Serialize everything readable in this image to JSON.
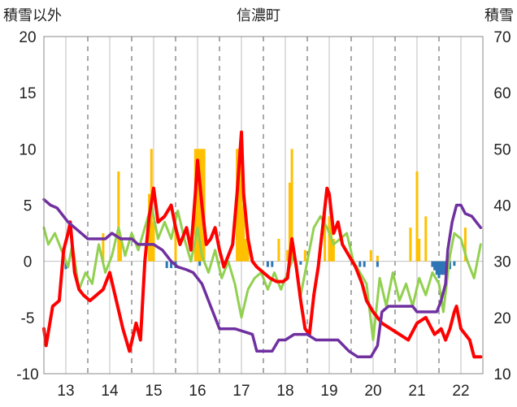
{
  "chart_data": {
    "type": "bar+line",
    "title": "信濃町",
    "left_axis_label": "積雪以外",
    "right_axis_label": "積雪",
    "left_ylim": [
      -10,
      20
    ],
    "left_yticks": [
      "20",
      "15",
      "10",
      "5",
      "0",
      "-5",
      "-10"
    ],
    "right_ylim": [
      10,
      70
    ],
    "right_yticks": [
      "70",
      "60",
      "50",
      "40",
      "30",
      "20",
      "10"
    ],
    "x_range": [
      12.5,
      22.5
    ],
    "x_ticks": [
      "13",
      "14",
      "15",
      "16",
      "17",
      "18",
      "19",
      "20",
      "21",
      "22"
    ],
    "grid": {
      "vertical_solid_at": [
        13,
        14,
        15,
        16,
        17,
        18,
        19,
        20,
        21,
        22
      ],
      "vertical_dashed_at": [
        13.5,
        14.5,
        15.5,
        16.5,
        17.5,
        18.5,
        19.5,
        20.5,
        21.5,
        22.5
      ]
    },
    "colors": {
      "orange_bars": "#FFC000",
      "blue_bars": "#2E75B6",
      "red_line": "#FF0000",
      "green_line": "#92D050",
      "purple_line": "#7030A0"
    },
    "orange_bars": [
      [
        13.85,
        2.5
      ],
      [
        14.2,
        8
      ],
      [
        14.25,
        2
      ],
      [
        14.9,
        6
      ],
      [
        14.95,
        10
      ],
      [
        15.0,
        3.5
      ],
      [
        15.5,
        3
      ],
      [
        15.95,
        10
      ],
      [
        16.0,
        10
      ],
      [
        16.05,
        10
      ],
      [
        16.1,
        10
      ],
      [
        16.15,
        10
      ],
      [
        16.9,
        10
      ],
      [
        16.95,
        10
      ],
      [
        17.0,
        10.5
      ],
      [
        17.05,
        5
      ],
      [
        17.1,
        2
      ],
      [
        17.15,
        1.5
      ],
      [
        17.85,
        2
      ],
      [
        18.05,
        1
      ],
      [
        18.1,
        7
      ],
      [
        18.15,
        10
      ],
      [
        18.45,
        1
      ],
      [
        18.9,
        5
      ],
      [
        19.0,
        4
      ],
      [
        19.05,
        4
      ],
      [
        19.1,
        2
      ],
      [
        19.95,
        1
      ],
      [
        20.1,
        0.5
      ],
      [
        20.85,
        3
      ],
      [
        21.0,
        8
      ],
      [
        21.05,
        2
      ],
      [
        21.2,
        4
      ],
      [
        22.1,
        3
      ]
    ],
    "blue_bars": [
      [
        13.0,
        -0.7
      ],
      [
        15.3,
        -0.6
      ],
      [
        15.4,
        -0.6
      ],
      [
        15.5,
        -0.6
      ],
      [
        16.05,
        -0.4
      ],
      [
        17.6,
        -0.5
      ],
      [
        17.7,
        -0.5
      ],
      [
        18.35,
        -0.3
      ],
      [
        19.7,
        -0.5
      ],
      [
        19.8,
        -0.5
      ],
      [
        20.1,
        -0.5
      ],
      [
        21.35,
        -0.5
      ],
      [
        21.4,
        -0.8
      ],
      [
        21.45,
        -1.2
      ],
      [
        21.5,
        -1.5
      ],
      [
        21.55,
        -1.2
      ],
      [
        21.6,
        -1.2
      ],
      [
        21.65,
        -1.2
      ],
      [
        21.7,
        -1.0
      ],
      [
        21.75,
        -0.7
      ],
      [
        21.85,
        -0.4
      ]
    ],
    "red_line": {
      "x": [
        12.5,
        12.55,
        12.7,
        12.85,
        12.95,
        13.05,
        13.1,
        13.2,
        13.3,
        13.4,
        13.55,
        13.7,
        13.85,
        14.0,
        14.15,
        14.3,
        14.45,
        14.6,
        14.7,
        14.8,
        14.9,
        15.0,
        15.1,
        15.25,
        15.4,
        15.5,
        15.6,
        15.75,
        15.85,
        15.95,
        16.0,
        16.1,
        16.2,
        16.3,
        16.4,
        16.5,
        16.6,
        16.7,
        16.8,
        16.9,
        17.0,
        17.05,
        17.15,
        17.25,
        17.35,
        17.5,
        17.65,
        17.8,
        17.95,
        18.05,
        18.15,
        18.25,
        18.35,
        18.45,
        18.55,
        18.65,
        18.75,
        18.85,
        18.95,
        19.0,
        19.1,
        19.2,
        19.3,
        19.45,
        19.6,
        19.75,
        19.85,
        20.0,
        20.2,
        20.4,
        20.6,
        20.8,
        21.0,
        21.2,
        21.4,
        21.55,
        21.65,
        21.75,
        21.85,
        21.9,
        22.0,
        22.1,
        22.2,
        22.3,
        22.45
      ],
      "y": [
        -6,
        -7.5,
        -4,
        -3.5,
        1,
        2.5,
        3.5,
        -1,
        -2.5,
        -3,
        -3.5,
        -3,
        -2.5,
        -1,
        -3.5,
        -6,
        -8,
        -5.5,
        -7,
        0,
        4,
        6.5,
        3.5,
        4,
        5,
        3,
        1.5,
        3,
        1,
        6,
        9,
        5,
        1.5,
        2,
        3,
        1,
        -0.5,
        0.5,
        1.5,
        6,
        11.5,
        6,
        2,
        0,
        -0.5,
        -1,
        -1.5,
        -1.8,
        -1.8,
        -1.5,
        2,
        -0.5,
        -3.5,
        -6,
        -6.5,
        -3,
        -0.5,
        3,
        6.5,
        6,
        2.5,
        3.5,
        1.5,
        0.5,
        -0.5,
        -2,
        -3.5,
        -4.5,
        -5.5,
        -6,
        -6.5,
        -7,
        -5.5,
        -5,
        -6.5,
        -6,
        -7,
        -6,
        -4.5,
        -4,
        -6,
        -6.5,
        -7,
        -8.5,
        -8.5
      ]
    },
    "green_line": {
      "x": [
        12.5,
        12.6,
        12.75,
        12.9,
        13.05,
        13.15,
        13.3,
        13.45,
        13.6,
        13.75,
        13.9,
        14.05,
        14.2,
        14.35,
        14.5,
        14.65,
        14.8,
        14.95,
        15.1,
        15.25,
        15.4,
        15.55,
        15.7,
        15.85,
        16.0,
        16.1,
        16.25,
        16.4,
        16.55,
        16.7,
        16.85,
        17.0,
        17.15,
        17.3,
        17.45,
        17.6,
        17.75,
        17.9,
        18.05,
        18.2,
        18.35,
        18.5,
        18.65,
        18.8,
        18.95,
        19.1,
        19.25,
        19.4,
        19.55,
        19.7,
        19.85,
        20.0,
        20.15,
        20.3,
        20.45,
        20.6,
        20.75,
        20.9,
        21.05,
        21.2,
        21.35,
        21.5,
        21.6,
        21.75,
        21.85,
        22.0,
        22.15,
        22.3,
        22.45
      ],
      "y": [
        3,
        1.5,
        2.5,
        1,
        -0.5,
        1.5,
        -2.5,
        -1,
        -2,
        1.5,
        -1,
        0.5,
        3,
        0.5,
        2.5,
        1,
        3,
        5,
        2,
        3.5,
        2,
        4.5,
        2,
        0,
        3,
        0.5,
        -1,
        1,
        -1.5,
        0,
        -2,
        -5,
        -2.5,
        -1.5,
        -1,
        -2.5,
        -1,
        -2.5,
        -1,
        0.5,
        -3,
        0,
        3,
        4,
        3,
        1.5,
        2,
        2.5,
        0,
        -1,
        -2,
        -7,
        -1.5,
        -4,
        -1,
        -3.5,
        -2,
        -4,
        -1.5,
        -3,
        -1,
        -2,
        -4.5,
        0.5,
        2.5,
        2,
        0,
        -1.5,
        1.5
      ]
    },
    "purple_line": {
      "x": [
        12.5,
        12.65,
        12.8,
        12.9,
        13.05,
        13.2,
        13.35,
        13.5,
        13.65,
        13.75,
        13.9,
        14.05,
        14.25,
        14.5,
        14.65,
        14.85,
        15.0,
        15.2,
        15.4,
        15.55,
        15.75,
        15.9,
        16.1,
        16.25,
        16.5,
        16.7,
        16.85,
        17.05,
        17.25,
        17.35,
        17.5,
        17.7,
        17.85,
        18.0,
        18.2,
        18.5,
        18.7,
        18.95,
        19.2,
        19.45,
        19.65,
        19.8,
        19.95,
        20.1,
        20.2,
        20.35,
        20.5,
        20.7,
        20.9,
        21.0,
        21.15,
        21.3,
        21.45,
        21.55,
        21.65,
        21.7,
        21.8,
        21.9,
        22.0,
        22.1,
        22.25,
        22.35,
        22.45
      ],
      "y": [
        41,
        40,
        39.5,
        38.5,
        37,
        36,
        35,
        34,
        34,
        34,
        34,
        35,
        34,
        34,
        33,
        33,
        33,
        32,
        30,
        29,
        28.5,
        28,
        26,
        23,
        18,
        18,
        18,
        17.5,
        17,
        14,
        14,
        14,
        16,
        16,
        17,
        17,
        16,
        16,
        16,
        14,
        13,
        13,
        13,
        15,
        21,
        22,
        22,
        22,
        22,
        21,
        21,
        21,
        21,
        23,
        26,
        32,
        37,
        40,
        40,
        38.5,
        38,
        37,
        36
      ]
    }
  }
}
